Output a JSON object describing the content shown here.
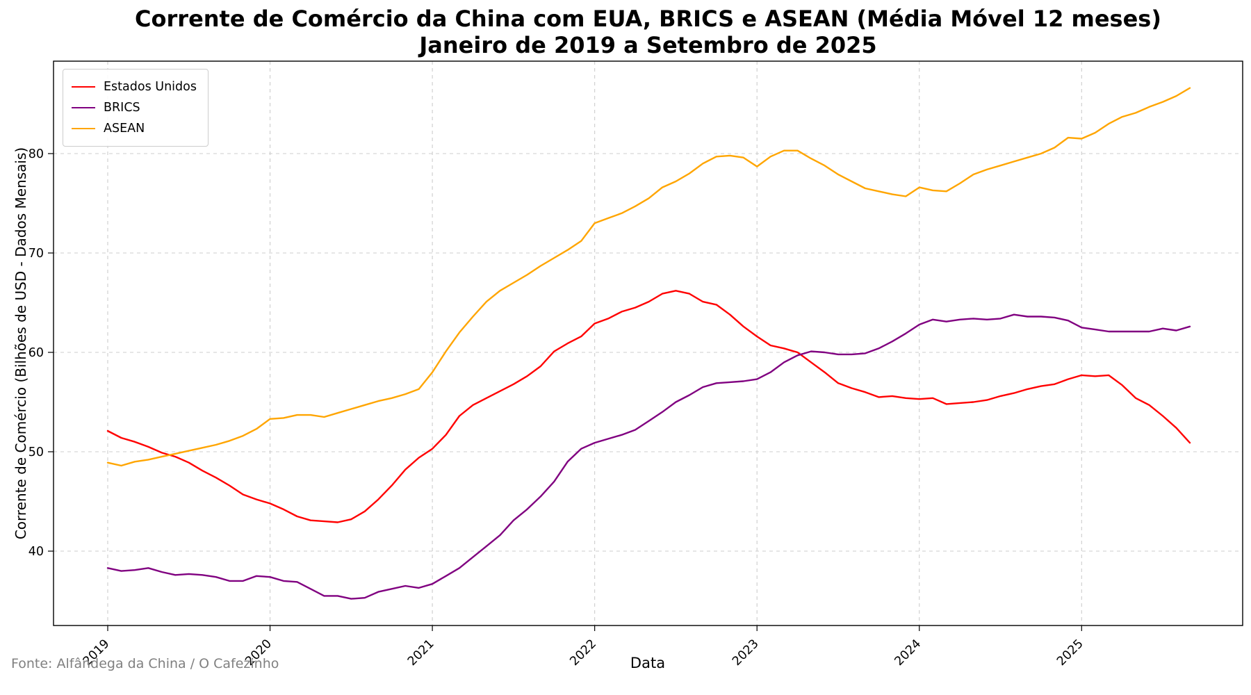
{
  "header": {
    "title_line1": "Corrente de Comércio da China com EUA, BRICS e ASEAN (Média Móvel 12 meses)",
    "title_line2": "Janeiro de 2019 a Setembro de 2025"
  },
  "footer": {
    "source_text": "Fonte: Alfândega da China / O Cafezinho"
  },
  "chart_data": {
    "type": "line",
    "title": "Corrente de Comércio da China com EUA, BRICS e ASEAN (Média Móvel 12 meses)",
    "subtitle": "Janeiro de 2019 a Setembro de 2025",
    "xlabel": "Data",
    "ylabel": "Corrente de Comércio (Bilhões de USD - Dados Mensais)",
    "x_start": "2019-01",
    "x_end": "2025-09",
    "frequency": "monthly",
    "x_tick_labels": [
      "2019",
      "2020",
      "2021",
      "2022",
      "2023",
      "2024",
      "2025"
    ],
    "x_tick_month_indices": [
      0,
      12,
      24,
      36,
      48,
      60,
      72
    ],
    "y_ticks": [
      40,
      50,
      60,
      70,
      80
    ],
    "ylim": [
      32.5,
      89.3
    ],
    "xlim_month_index": [
      -4,
      84
    ],
    "grid": "dashed",
    "legend_position": "upper-left",
    "series": [
      {
        "name": "Estados Unidos",
        "color": "#ff0000",
        "values": [
          52.1,
          51.4,
          51.0,
          50.5,
          49.9,
          49.5,
          48.9,
          48.1,
          47.4,
          46.6,
          45.7,
          45.2,
          44.8,
          44.2,
          43.5,
          43.1,
          43.0,
          42.9,
          43.2,
          44.0,
          45.2,
          46.6,
          48.2,
          49.4,
          50.3,
          51.7,
          53.6,
          54.7,
          55.4,
          56.1,
          56.8,
          57.6,
          58.6,
          60.1,
          60.9,
          61.6,
          62.9,
          63.4,
          64.1,
          64.5,
          65.1,
          65.9,
          66.2,
          65.9,
          65.1,
          64.8,
          63.8,
          62.6,
          61.6,
          60.7,
          60.4,
          60.0,
          59.0,
          58.0,
          56.9,
          56.4,
          56.0,
          55.5,
          55.6,
          55.4,
          55.3,
          55.4,
          54.8,
          54.9,
          55.0,
          55.2,
          55.6,
          55.9,
          56.3,
          56.6,
          56.8,
          57.3,
          57.7,
          57.6,
          57.7,
          56.7,
          55.4,
          54.7,
          53.6,
          52.4,
          50.9
        ]
      },
      {
        "name": "BRICS",
        "color": "#800080",
        "values": [
          38.3,
          38.0,
          38.1,
          38.3,
          37.9,
          37.6,
          37.7,
          37.6,
          37.4,
          37.0,
          37.0,
          37.5,
          37.4,
          37.0,
          36.9,
          36.2,
          35.5,
          35.5,
          35.2,
          35.3,
          35.9,
          36.2,
          36.5,
          36.3,
          36.7,
          37.5,
          38.3,
          39.4,
          40.5,
          41.6,
          43.1,
          44.2,
          45.5,
          47.0,
          49.0,
          50.3,
          50.9,
          51.3,
          51.7,
          52.2,
          53.1,
          54.0,
          55.0,
          55.7,
          56.5,
          56.9,
          57.0,
          57.1,
          57.3,
          58.0,
          59.0,
          59.7,
          60.1,
          60.0,
          59.8,
          59.8,
          59.9,
          60.4,
          61.1,
          61.9,
          62.8,
          63.3,
          63.1,
          63.3,
          63.4,
          63.3,
          63.4,
          63.8,
          63.6,
          63.6,
          63.5,
          63.2,
          62.5,
          62.3,
          62.1,
          62.1,
          62.1,
          62.1,
          62.4,
          62.2,
          62.6
        ]
      },
      {
        "name": "ASEAN",
        "color": "#ffa500",
        "values": [
          48.9,
          48.6,
          49.0,
          49.2,
          49.5,
          49.8,
          50.1,
          50.4,
          50.7,
          51.1,
          51.6,
          52.3,
          53.3,
          53.4,
          53.7,
          53.7,
          53.5,
          53.9,
          54.3,
          54.7,
          55.1,
          55.4,
          55.8,
          56.3,
          58.0,
          60.1,
          62.0,
          63.6,
          65.1,
          66.2,
          67.0,
          67.8,
          68.7,
          69.5,
          70.3,
          71.2,
          73.0,
          73.5,
          74.0,
          74.7,
          75.5,
          76.6,
          77.2,
          78.0,
          79.0,
          79.7,
          79.8,
          79.6,
          78.7,
          79.7,
          80.3,
          80.3,
          79.5,
          78.8,
          77.9,
          77.2,
          76.5,
          76.2,
          75.9,
          75.7,
          76.6,
          76.3,
          76.2,
          77.0,
          77.9,
          78.4,
          78.8,
          79.2,
          79.6,
          80.0,
          80.6,
          81.6,
          81.5,
          82.1,
          83.0,
          83.7,
          84.1,
          84.7,
          85.2,
          85.8,
          86.6
        ]
      }
    ]
  }
}
